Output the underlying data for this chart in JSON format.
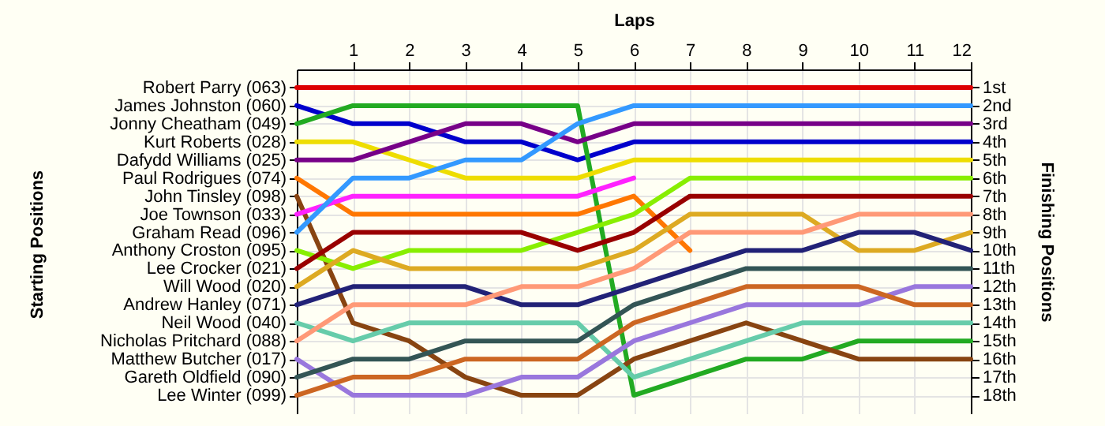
{
  "chart_data": {
    "type": "line",
    "xlabel": "Laps",
    "annotations": [
      "Starting Positions"
    ],
    "y2label": "Finishing Positions",
    "x": [
      0,
      1,
      2,
      3,
      4,
      5,
      6,
      7,
      8,
      9,
      10,
      11,
      12
    ],
    "xlim": [
      0,
      12
    ],
    "xticks": [
      1,
      2,
      3,
      4,
      5,
      6,
      7,
      8,
      9,
      10,
      11,
      12
    ],
    "y_categories": [
      "Robert Parry (063)",
      "James Johnston (060)",
      "Jonny Cheatham (049)",
      "Kurt Roberts (028)",
      "Dafydd Williams (025)",
      "Paul Rodrigues (074)",
      "John Tinsley (098)",
      "Joe Townson (033)",
      "Graham Read (096)",
      "Anthony Croston (095)",
      "Lee Crocker (021)",
      "Will Wood (020)",
      "Andrew Hanley (071)",
      "Neil Wood (040)",
      "Nicholas Pritchard (088)",
      "Matthew Butcher (017)",
      "Gareth Oldfield (090)",
      "Lee Winter (099)"
    ],
    "y2lim": [
      19,
      0
    ],
    "y2ticks": [
      {
        "value": 1,
        "label": "1st"
      },
      {
        "value": 2,
        "label": "2nd"
      },
      {
        "value": 3,
        "label": "3rd"
      },
      {
        "value": 4,
        "label": "4th"
      },
      {
        "value": 5,
        "label": "5th"
      },
      {
        "value": 6,
        "label": "6th"
      },
      {
        "value": 7,
        "label": "7th"
      },
      {
        "value": 8,
        "label": "8th"
      },
      {
        "value": 9,
        "label": "9th"
      },
      {
        "value": 10,
        "label": "10th"
      },
      {
        "value": 11,
        "label": "11th"
      },
      {
        "value": 12,
        "label": "12th"
      },
      {
        "value": 13,
        "label": "13th"
      },
      {
        "value": 14,
        "label": "14th"
      },
      {
        "value": 15,
        "label": "15th"
      },
      {
        "value": 16,
        "label": "16th"
      },
      {
        "value": 17,
        "label": "17th"
      },
      {
        "value": 18,
        "label": "18th"
      }
    ],
    "grid": true,
    "marker": "none",
    "line_style": "solid",
    "series": [
      {
        "color": "#dd0000",
        "axis": "y2",
        "values": [
          1,
          1,
          1,
          1,
          1,
          1,
          1,
          1,
          1,
          1,
          1,
          1,
          1
        ]
      },
      {
        "color": "#0000cc",
        "axis": "y2",
        "values": [
          2,
          3,
          3,
          4,
          4,
          5,
          4,
          4,
          4,
          4,
          4,
          4,
          4
        ]
      },
      {
        "color": "#22aa22",
        "axis": "y2",
        "values": [
          3,
          2,
          2,
          2,
          2,
          2,
          18,
          17,
          16,
          16,
          15,
          15,
          15
        ]
      },
      {
        "color": "#eedd00",
        "axis": "y2",
        "values": [
          4,
          4,
          5,
          6,
          6,
          6,
          5,
          5,
          5,
          5,
          5,
          5,
          5
        ]
      },
      {
        "color": "#770088",
        "axis": "y2",
        "values": [
          5,
          5,
          4,
          3,
          3,
          4,
          3,
          3,
          3,
          3,
          3,
          3,
          3
        ]
      },
      {
        "color": "#ff7700",
        "axis": "y2",
        "values": [
          6,
          8,
          8,
          8,
          8,
          8,
          7,
          10,
          null,
          null,
          null,
          null,
          null
        ]
      },
      {
        "color": "#884411",
        "axis": "y2",
        "values": [
          7,
          14,
          15,
          17,
          18,
          18,
          16,
          15,
          14,
          15,
          16,
          16,
          16
        ]
      },
      {
        "color": "#ff22ff",
        "axis": "y2",
        "values": [
          8,
          7,
          7,
          7,
          7,
          7,
          6,
          null,
          null,
          null,
          null,
          null,
          null
        ]
      },
      {
        "color": "#3399ff",
        "axis": "y2",
        "values": [
          9,
          6,
          6,
          5,
          5,
          3,
          2,
          2,
          2,
          2,
          2,
          2,
          2
        ]
      },
      {
        "color": "#88ee00",
        "axis": "y2",
        "values": [
          10,
          11,
          10,
          10,
          10,
          9,
          8,
          6,
          6,
          6,
          6,
          6,
          6
        ]
      },
      {
        "color": "#990000",
        "axis": "y2",
        "values": [
          11,
          9,
          9,
          9,
          9,
          10,
          9,
          7,
          7,
          7,
          7,
          7,
          7
        ]
      },
      {
        "color": "#ddaa22",
        "axis": "y2",
        "values": [
          12,
          10,
          11,
          11,
          11,
          11,
          10,
          8,
          8,
          8,
          10,
          10,
          9
        ]
      },
      {
        "color": "#222277",
        "axis": "y2",
        "values": [
          13,
          12,
          12,
          12,
          13,
          13,
          12,
          11,
          10,
          10,
          9,
          9,
          10
        ]
      },
      {
        "color": "#66ccaa",
        "axis": "y2",
        "values": [
          14,
          15,
          14,
          14,
          14,
          14,
          17,
          16,
          15,
          14,
          14,
          14,
          14
        ]
      },
      {
        "color": "#ff9977",
        "axis": "y2",
        "values": [
          15,
          13,
          13,
          13,
          12,
          12,
          11,
          9,
          9,
          9,
          8,
          8,
          8
        ]
      },
      {
        "color": "#9977dd",
        "axis": "y2",
        "values": [
          16,
          18,
          18,
          18,
          17,
          17,
          15,
          14,
          13,
          13,
          13,
          12,
          12
        ]
      },
      {
        "color": "#335555",
        "axis": "y2",
        "values": [
          17,
          16,
          16,
          15,
          15,
          15,
          13,
          12,
          11,
          11,
          11,
          11,
          11
        ]
      },
      {
        "color": "#cc6622",
        "axis": "y2",
        "values": [
          18,
          17,
          17,
          16,
          16,
          16,
          14,
          13,
          12,
          12,
          12,
          13,
          13
        ]
      }
    ]
  }
}
